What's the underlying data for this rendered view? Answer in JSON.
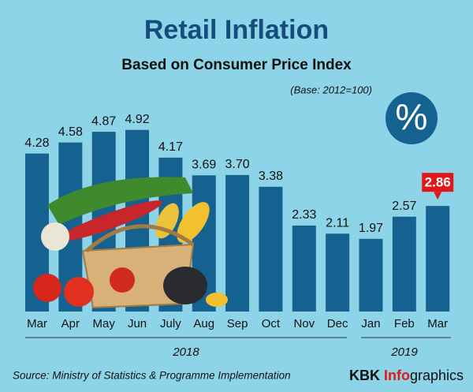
{
  "chart_data": {
    "type": "bar",
    "title": "Retail Inflation",
    "subtitle": "Based on Consumer Price Index",
    "base_note": "(Base: 2012=100)",
    "icon_text": "%",
    "groups": [
      {
        "label": "2018",
        "categories": [
          "Mar",
          "Apr",
          "May",
          "Jun",
          "July",
          "Aug",
          "Sep",
          "Oct",
          "Nov",
          "Dec"
        ]
      },
      {
        "label": "2019",
        "categories": [
          "Jan",
          "Feb",
          "Mar"
        ]
      }
    ],
    "values": [
      4.28,
      4.58,
      4.87,
      4.92,
      4.17,
      3.69,
      3.7,
      3.38,
      2.33,
      2.11,
      1.97,
      2.57,
      2.86
    ],
    "value_labels": [
      "4.28",
      "4.58",
      "4.87",
      "4.92",
      "4.17",
      "3.69",
      "3.70",
      "3.38",
      "2.33",
      "2.11",
      "1.97",
      "2.57",
      "2.86"
    ],
    "color": "#15618f",
    "highlight_color": "#e3171b",
    "source": "Source: Ministry of Statistics & Programme Implementation",
    "brand": [
      "KBK ",
      "Info",
      "graphics"
    ]
  }
}
